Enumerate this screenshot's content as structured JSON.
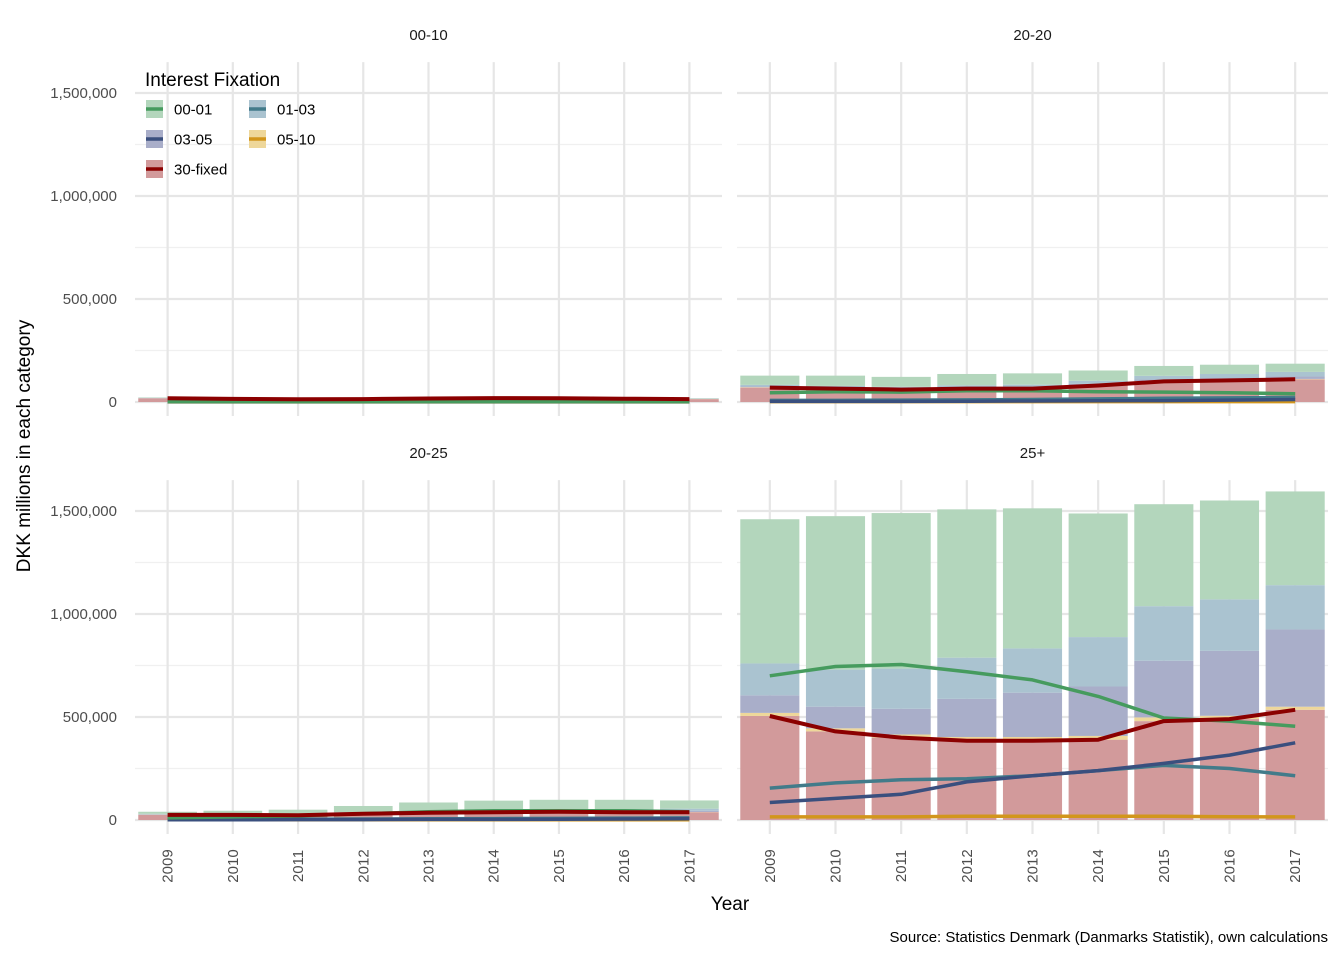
{
  "chart_data": {
    "type": "bar",
    "overlay": "line",
    "x": [
      2009,
      2010,
      2011,
      2012,
      2013,
      2014,
      2015,
      2016,
      2017
    ],
    "xlabel": "Year",
    "ylabel": "DKK millions in each category",
    "ylim": [
      0,
      1650000
    ],
    "yticks": [
      0,
      500000,
      1000000,
      1500000
    ],
    "ytick_labels": [
      "0",
      "500,000",
      "1,000,000",
      "1,500,000"
    ],
    "grid": true,
    "caption": "Source: Statistics Denmark (Danmarks Statistik), own calculations",
    "legend": {
      "title": "Interest Fixation",
      "position": "top-left",
      "items": [
        {
          "key": "00-01",
          "label": "00-01",
          "bar_color": "#b3d6bc",
          "line_color": "#469b5e"
        },
        {
          "key": "01-03",
          "label": "01-03",
          "bar_color": "#aac3d0",
          "line_color": "#427b8a"
        },
        {
          "key": "03-05",
          "label": "03-05",
          "bar_color": "#a9aec9",
          "line_color": "#3a4f7e"
        },
        {
          "key": "05-10",
          "label": "05-10",
          "bar_color": "#eed79a",
          "line_color": "#d2961c"
        },
        {
          "key": "30-fixed",
          "label": "30-fixed",
          "bar_color": "#d29a9b",
          "line_color": "#8b0000"
        }
      ]
    },
    "facets": [
      {
        "title": "00-10",
        "series": [
          {
            "key": "00-01",
            "values": [
              2000,
              2000,
              2000,
              2000,
              2000,
              2000,
              2000,
              2000,
              2000
            ]
          },
          {
            "key": "01-03",
            "values": [
              1000,
              1000,
              1000,
              1000,
              1000,
              1000,
              1000,
              1000,
              1000
            ]
          },
          {
            "key": "03-05",
            "values": [
              1000,
              1000,
              1000,
              1000,
              1000,
              1000,
              1000,
              1000,
              1000
            ]
          },
          {
            "key": "05-10",
            "values": [
              500,
              500,
              500,
              500,
              500,
              500,
              500,
              500,
              500
            ]
          },
          {
            "key": "30-fixed",
            "values": [
              18000,
              15000,
              13000,
              14000,
              17000,
              19000,
              18000,
              16000,
              14000
            ]
          }
        ]
      },
      {
        "title": "20-20",
        "series": [
          {
            "key": "00-01",
            "values": [
              45000,
              50000,
              48000,
              55000,
              55000,
              50000,
              48000,
              45000,
              40000
            ]
          },
          {
            "key": "01-03",
            "values": [
              8000,
              8000,
              9000,
              10000,
              12000,
              15000,
              18000,
              20000,
              22000
            ]
          },
          {
            "key": "03-05",
            "values": [
              3000,
              3000,
              3000,
              4000,
              5000,
              6000,
              7000,
              9000,
              12000
            ]
          },
          {
            "key": "05-10",
            "values": [
              2000,
              2000,
              2000,
              2000,
              2000,
              2000,
              2000,
              2000,
              2000
            ]
          },
          {
            "key": "30-fixed",
            "values": [
              70000,
              65000,
              60000,
              65000,
              65000,
              80000,
              100000,
              105000,
              110000
            ]
          }
        ]
      },
      {
        "title": "20-25",
        "series": [
          {
            "key": "00-01",
            "values": [
              10000,
              15000,
              20000,
              30000,
              40000,
              45000,
              45000,
              45000,
              40000
            ]
          },
          {
            "key": "01-03",
            "values": [
              3000,
              3000,
              4000,
              5000,
              6000,
              7000,
              8000,
              9000,
              10000
            ]
          },
          {
            "key": "03-05",
            "values": [
              1000,
              1000,
              2000,
              2000,
              3000,
              3000,
              4000,
              5000,
              6000
            ]
          },
          {
            "key": "05-10",
            "values": [
              1000,
              1000,
              1000,
              1000,
              1000,
              1000,
              1000,
              1000,
              1000
            ]
          },
          {
            "key": "30-fixed",
            "values": [
              25000,
              25000,
              23000,
              30000,
              35000,
              38000,
              40000,
              38000,
              38000
            ]
          }
        ]
      },
      {
        "title": "25+",
        "series": [
          {
            "key": "00-01",
            "values": [
              700000,
              745000,
              755000,
              720000,
              680000,
              600000,
              495000,
              480000,
              455000
            ]
          },
          {
            "key": "01-03",
            "values": [
              155000,
              180000,
              195000,
              200000,
              215000,
              240000,
              265000,
              250000,
              215000
            ]
          },
          {
            "key": "03-05",
            "values": [
              85000,
              105000,
              125000,
              185000,
              215000,
              240000,
              275000,
              315000,
              375000
            ]
          },
          {
            "key": "05-10",
            "values": [
              15000,
              15000,
              15000,
              18000,
              18000,
              18000,
              18000,
              16000,
              15000
            ]
          },
          {
            "key": "30-fixed",
            "values": [
              505000,
              430000,
              400000,
              385000,
              385000,
              390000,
              480000,
              490000,
              535000
            ]
          }
        ]
      }
    ]
  }
}
